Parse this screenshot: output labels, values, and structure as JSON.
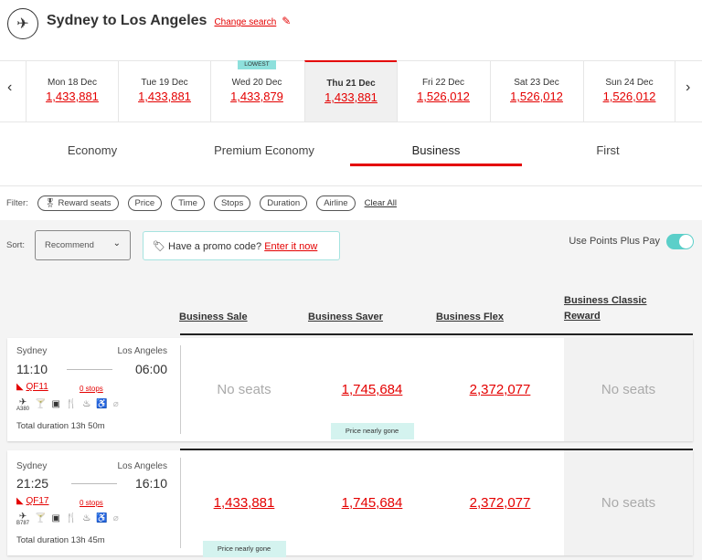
{
  "header": {
    "title": "Sydney to Los Angeles",
    "change_search": "Change search"
  },
  "dates": [
    {
      "day": "Mon 18 Dec",
      "price": "1,433,881"
    },
    {
      "day": "Tue 19 Dec",
      "price": "1,433,881"
    },
    {
      "day": "Wed 20 Dec",
      "price": "1,433,879",
      "badge": "LOWEST"
    },
    {
      "day": "Thu 21 Dec",
      "price": "1,433,881",
      "selected": true
    },
    {
      "day": "Fri 22 Dec",
      "price": "1,526,012"
    },
    {
      "day": "Sat 23 Dec",
      "price": "1,526,012"
    },
    {
      "day": "Sun 24 Dec",
      "price": "1,526,012"
    }
  ],
  "tabs": [
    {
      "label": "Economy"
    },
    {
      "label": "Premium Economy"
    },
    {
      "label": "Business",
      "active": true
    },
    {
      "label": "First"
    }
  ],
  "filter": {
    "label": "Filter:",
    "chips": [
      "Reward seats",
      "Price",
      "Time",
      "Stops",
      "Duration",
      "Airline"
    ],
    "clear": "Clear All"
  },
  "sort": {
    "label": "Sort:",
    "value": "Recommend"
  },
  "promo": {
    "text": "Have a promo code?",
    "link": "Enter it now"
  },
  "points_plus_pay": {
    "label": "Use Points Plus Pay",
    "on": true
  },
  "columns": [
    "Business Sale",
    "Business Saver",
    "Business Flex",
    "Business Classic Reward"
  ],
  "flights": [
    {
      "from": "Sydney",
      "to": "Los Angeles",
      "dep": "11:10",
      "arr": "06:00",
      "flight": "QF11",
      "stops": "0 stops",
      "aircraft": "A380",
      "duration": "Total duration 13h 50m",
      "fares": [
        {
          "text": "No seats",
          "available": false
        },
        {
          "text": "1,745,684",
          "available": true,
          "note": "Price nearly gone"
        },
        {
          "text": "2,372,077",
          "available": true
        },
        {
          "text": "No seats",
          "available": false
        }
      ]
    },
    {
      "from": "Sydney",
      "to": "Los Angeles",
      "dep": "21:25",
      "arr": "16:10",
      "flight": "QF17",
      "stops": "0 stops",
      "aircraft": "B787",
      "duration": "Total duration 13h 45m",
      "fares": [
        {
          "text": "1,433,881",
          "available": true,
          "note": "Price nearly gone"
        },
        {
          "text": "1,745,684",
          "available": true
        },
        {
          "text": "2,372,077",
          "available": true
        },
        {
          "text": "No seats",
          "available": false
        }
      ]
    }
  ],
  "colors": {
    "accent": "#e40000",
    "teal": "#5bcfc9"
  }
}
